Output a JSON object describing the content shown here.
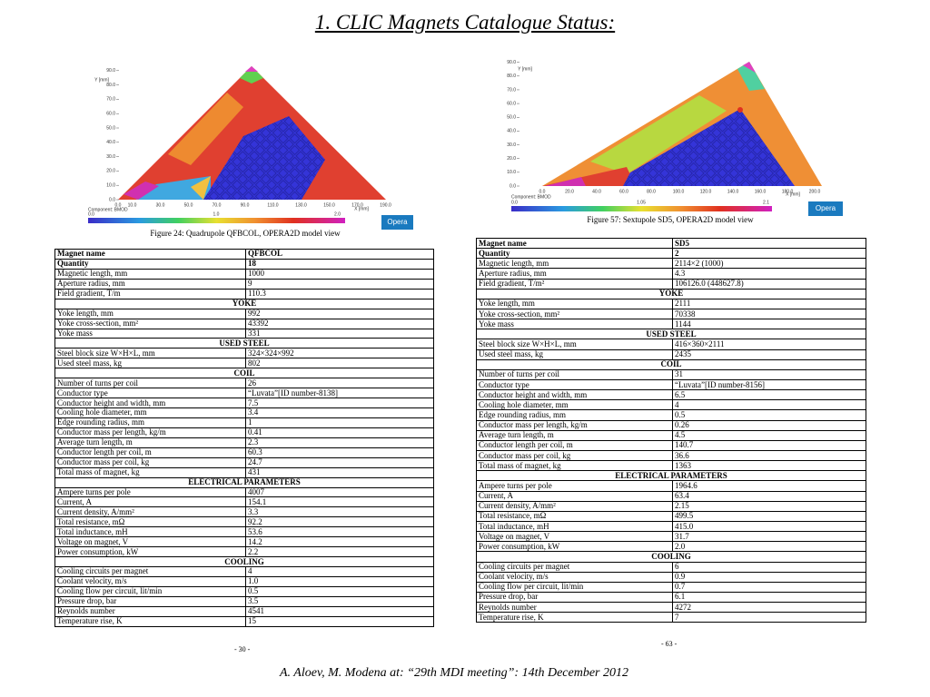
{
  "title": "1. CLIC Magnets Catalogue Status:",
  "figures": [
    {
      "caption": "Figure 24: Quadrupole QFBCOL, OPERA2D model view",
      "y_label": "Y [mm]",
      "x_label": "X [mm]",
      "component": "Component: BMOD",
      "y_ticks": [
        "0.0",
        "10.0",
        "20.0",
        "30.0",
        "40.0",
        "50.0",
        "60.0",
        "70.0",
        "80.0",
        "90.0"
      ],
      "x_ticks": [
        "0.0",
        "10.0",
        "30.0",
        "50.0",
        "70.0",
        "90.0",
        "110.0",
        "130.0",
        "150.0",
        "170.0",
        "190.0"
      ],
      "colorbar_labels": [
        "0.0",
        "1.0",
        "2.0"
      ],
      "button": "Opera"
    },
    {
      "caption": "Figure 57: Sextupole SD5, OPERA2D model view",
      "y_label": "Y [mm]",
      "x_label": "X [mm]",
      "component": "Component: BMOD",
      "y_ticks": [
        "0.0",
        "10.0",
        "20.0",
        "30.0",
        "40.0",
        "50.0",
        "60.0",
        "70.0",
        "80.0",
        "90.0"
      ],
      "x_ticks": [
        "0.0",
        "20.0",
        "40.0",
        "60.0",
        "80.0",
        "100.0",
        "120.0",
        "140.0",
        "160.0",
        "180.0",
        "200.0"
      ],
      "colorbar_labels": [
        "0.0",
        "1.05",
        "2.1"
      ],
      "button": "Opera"
    }
  ],
  "tables": [
    {
      "rows": [
        [
          "Magnet name",
          "QFBCOL"
        ],
        [
          "Quantity",
          "18"
        ],
        [
          "Magnetic length, mm",
          "1000"
        ],
        [
          "Aperture radius, mm",
          "9"
        ],
        [
          "Field gradient, T/m",
          "110.3"
        ],
        [
          "YOKE"
        ],
        [
          "Yoke length, mm",
          "992"
        ],
        [
          "Yoke cross-section, mm²",
          "43392"
        ],
        [
          "Yoke mass",
          "331"
        ],
        [
          "USED STEEL"
        ],
        [
          "Steel block size W×H×L, mm",
          "324×324×992"
        ],
        [
          "Used steel mass, kg",
          "802"
        ],
        [
          "COIL"
        ],
        [
          "Number of turns per coil",
          "26"
        ],
        [
          "Conductor type",
          "“Luvata”[ID number-8138]"
        ],
        [
          "Conductor height and width, mm",
          "7.5"
        ],
        [
          "Cooling hole diameter, mm",
          "3.4"
        ],
        [
          "Edge rounding radius, mm",
          "1"
        ],
        [
          "Conductor mass per length, kg/m",
          "0.41"
        ],
        [
          "Average turn length, m",
          "2.3"
        ],
        [
          "Conductor length per coil, m",
          "60.3"
        ],
        [
          "Conductor mass per coil, kg",
          "24.7"
        ],
        [
          "Total mass of magnet, kg",
          "431"
        ],
        [
          "ELECTRICAL PARAMETERS"
        ],
        [
          "Ampere turns per pole",
          "4007"
        ],
        [
          "Current, A",
          "154.1"
        ],
        [
          "Current density, A/mm²",
          "3.3"
        ],
        [
          "Total resistance, mΩ",
          "92.2"
        ],
        [
          "Total inductance, mH",
          "53.6"
        ],
        [
          "Voltage on magnet, V",
          "14.2"
        ],
        [
          "Power consumption, kW",
          "2.2"
        ],
        [
          "COOLING"
        ],
        [
          "Cooling circuits per magnet",
          "4"
        ],
        [
          "Coolant velocity, m/s",
          "1.0"
        ],
        [
          "Cooling flow per circuit, lit/min",
          "0.5"
        ],
        [
          "Pressure drop, bar",
          "3.5"
        ],
        [
          "Reynolds number",
          "4541"
        ],
        [
          "Temperature rise, K",
          "15"
        ]
      ]
    },
    {
      "rows": [
        [
          "Magnet name",
          "SD5"
        ],
        [
          "Quantity",
          "2"
        ],
        [
          "Magnetic length, mm",
          "2114×2 (1000)"
        ],
        [
          "Aperture radius, mm",
          "4.3"
        ],
        [
          "Field gradient, T/m²",
          "106126.0 (448627.8)"
        ],
        [
          "YOKE"
        ],
        [
          "Yoke length, mm",
          "2111"
        ],
        [
          "Yoke cross-section, mm²",
          "70338"
        ],
        [
          "Yoke mass",
          "1144"
        ],
        [
          "USED STEEL"
        ],
        [
          "Steel block size W×H×L, mm",
          "416×360×2111"
        ],
        [
          "Used steel mass, kg",
          "2435"
        ],
        [
          "COIL"
        ],
        [
          "Number of turns per coil",
          "31"
        ],
        [
          "Conductor type",
          "“Luvata”[ID number-8156]"
        ],
        [
          "Conductor height and width, mm",
          "6.5"
        ],
        [
          "Cooling hole diameter, mm",
          "4"
        ],
        [
          "Edge rounding radius, mm",
          "0.5"
        ],
        [
          "Conductor mass per length, kg/m",
          "0.26"
        ],
        [
          "Average turn length, m",
          "4.5"
        ],
        [
          "Conductor length per coil, m",
          "140.7"
        ],
        [
          "Conductor mass per coil, kg",
          "36.6"
        ],
        [
          "Total mass of magnet, kg",
          "1363"
        ],
        [
          "ELECTRICAL PARAMETERS"
        ],
        [
          "Ampere turns per pole",
          "1964.6"
        ],
        [
          "Current, A",
          "63.4"
        ],
        [
          "Current density, A/mm²",
          "2.15"
        ],
        [
          "Total resistance, mΩ",
          "499.5"
        ],
        [
          "Total inductance, mH",
          "415.0"
        ],
        [
          "Voltage on magnet, V",
          "31.7"
        ],
        [
          "Power consumption, kW",
          "2.0"
        ],
        [
          "COOLING"
        ],
        [
          "Cooling circuits per magnet",
          "6"
        ],
        [
          "Coolant velocity, m/s",
          "0.9"
        ],
        [
          "Cooling flow per circuit, lit/min",
          "0.7"
        ],
        [
          "Pressure drop, bar",
          "6.1"
        ],
        [
          "Reynolds number",
          "4272"
        ],
        [
          "Temperature rise, K",
          "7"
        ]
      ]
    }
  ],
  "page_numbers": [
    "- 30 -",
    "- 63 -"
  ],
  "footer": "A. Aloev, M. Modena at: “29th MDI meeting”: 14th December 2012"
}
